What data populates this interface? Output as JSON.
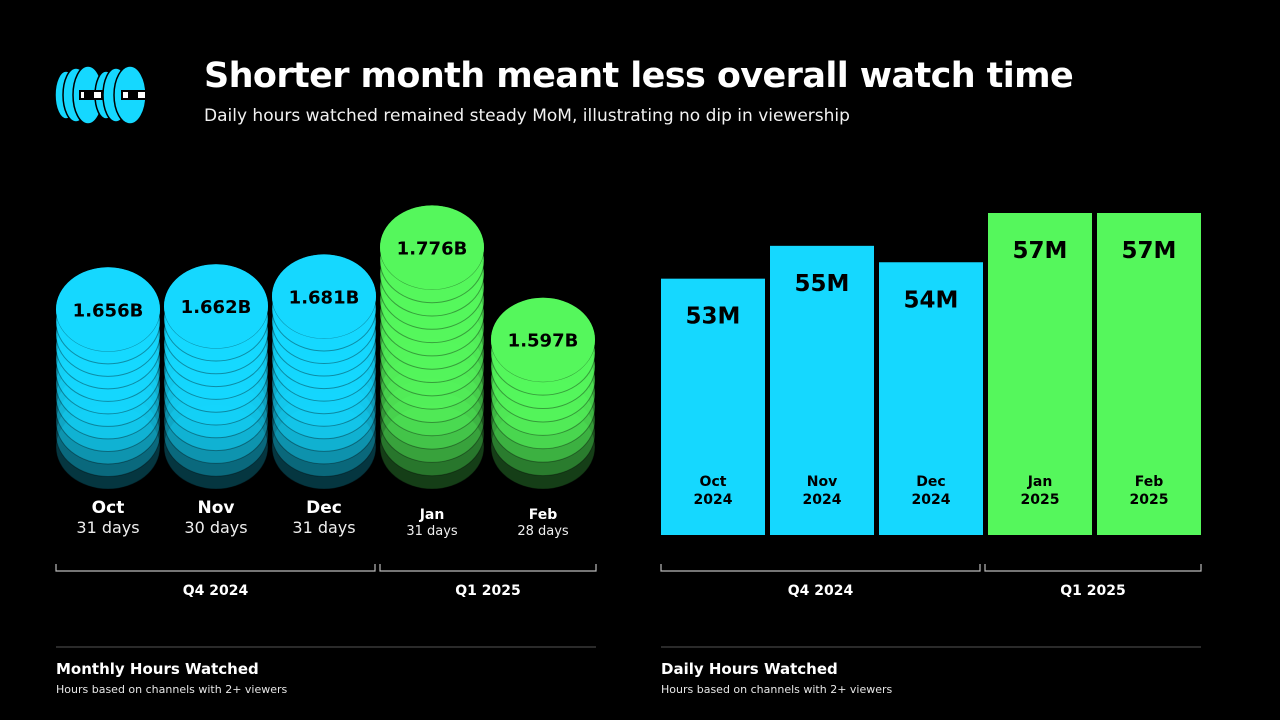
{
  "header": {
    "title": "Shorter month meant less overall watch time",
    "subtitle": "Daily hours watched remained steady MoM, illustrating no dip in viewership"
  },
  "colors": {
    "q4": "#15d8ff",
    "q1": "#55f75c",
    "background": "#000000"
  },
  "logo": {
    "icon": "kick-eyes-logo-icon"
  },
  "chart_data": [
    {
      "type": "bar",
      "title": "Monthly Hours Watched",
      "note": "Hours based on channels with 2+ viewers",
      "categories": [
        "Oct",
        "Nov",
        "Dec",
        "Jan",
        "Feb"
      ],
      "days": [
        "31 days",
        "30 days",
        "31 days",
        "31 days",
        "28 days"
      ],
      "values": [
        1.656,
        1.662,
        1.681,
        1.776,
        1.597
      ],
      "labels": [
        "1.656B",
        "1.662B",
        "1.681B",
        "1.776B",
        "1.597B"
      ],
      "unit": "B hours",
      "groups": [
        {
          "name": "Q4 2024",
          "from": 0,
          "to": 2
        },
        {
          "name": "Q1 2025",
          "from": 3,
          "to": 4
        }
      ]
    },
    {
      "type": "bar",
      "title": "Daily Hours Watched",
      "note": "Hours based on channels with 2+ viewers",
      "categories": [
        "Oct 2024",
        "Nov 2024",
        "Dec 2024",
        "Jan 2025",
        "Feb 2025"
      ],
      "values": [
        53,
        55,
        54,
        57,
        57
      ],
      "labels": [
        "53M",
        "55M",
        "54M",
        "57M",
        "57M"
      ],
      "unit": "M hours",
      "groups": [
        {
          "name": "Q4 2024",
          "from": 0,
          "to": 2
        },
        {
          "name": "Q1 2025",
          "from": 3,
          "to": 4
        }
      ]
    }
  ]
}
